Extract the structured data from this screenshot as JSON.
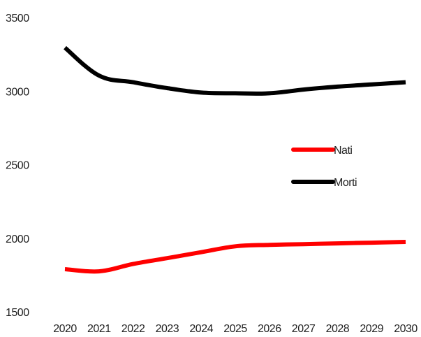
{
  "chart_data": {
    "type": "line",
    "x": [
      2020,
      2021,
      2022,
      2023,
      2024,
      2025,
      2026,
      2027,
      2028,
      2029,
      2030
    ],
    "x_tick_labels": [
      "2020",
      "2021",
      "2022",
      "2023",
      "2024",
      "2025",
      "2026",
      "2027",
      "2028",
      "2029",
      "2030"
    ],
    "y_tick_labels": [
      "1500",
      "2000",
      "2500",
      "3000",
      "3500"
    ],
    "y_ticks": [
      1500,
      2000,
      2500,
      3000,
      3500
    ],
    "ylim": [
      1500,
      3500
    ],
    "grid": false,
    "legend_position": "right",
    "series": [
      {
        "name": "Nati",
        "color": "#ff0000",
        "values": [
          1790,
          1775,
          1825,
          1865,
          1905,
          1945,
          1955,
          1960,
          1965,
          1970,
          1975
        ]
      },
      {
        "name": "Morti",
        "color": "#000000",
        "values": [
          3295,
          3105,
          3060,
          3020,
          2990,
          2985,
          2985,
          3010,
          3030,
          3045,
          3060
        ]
      }
    ]
  }
}
